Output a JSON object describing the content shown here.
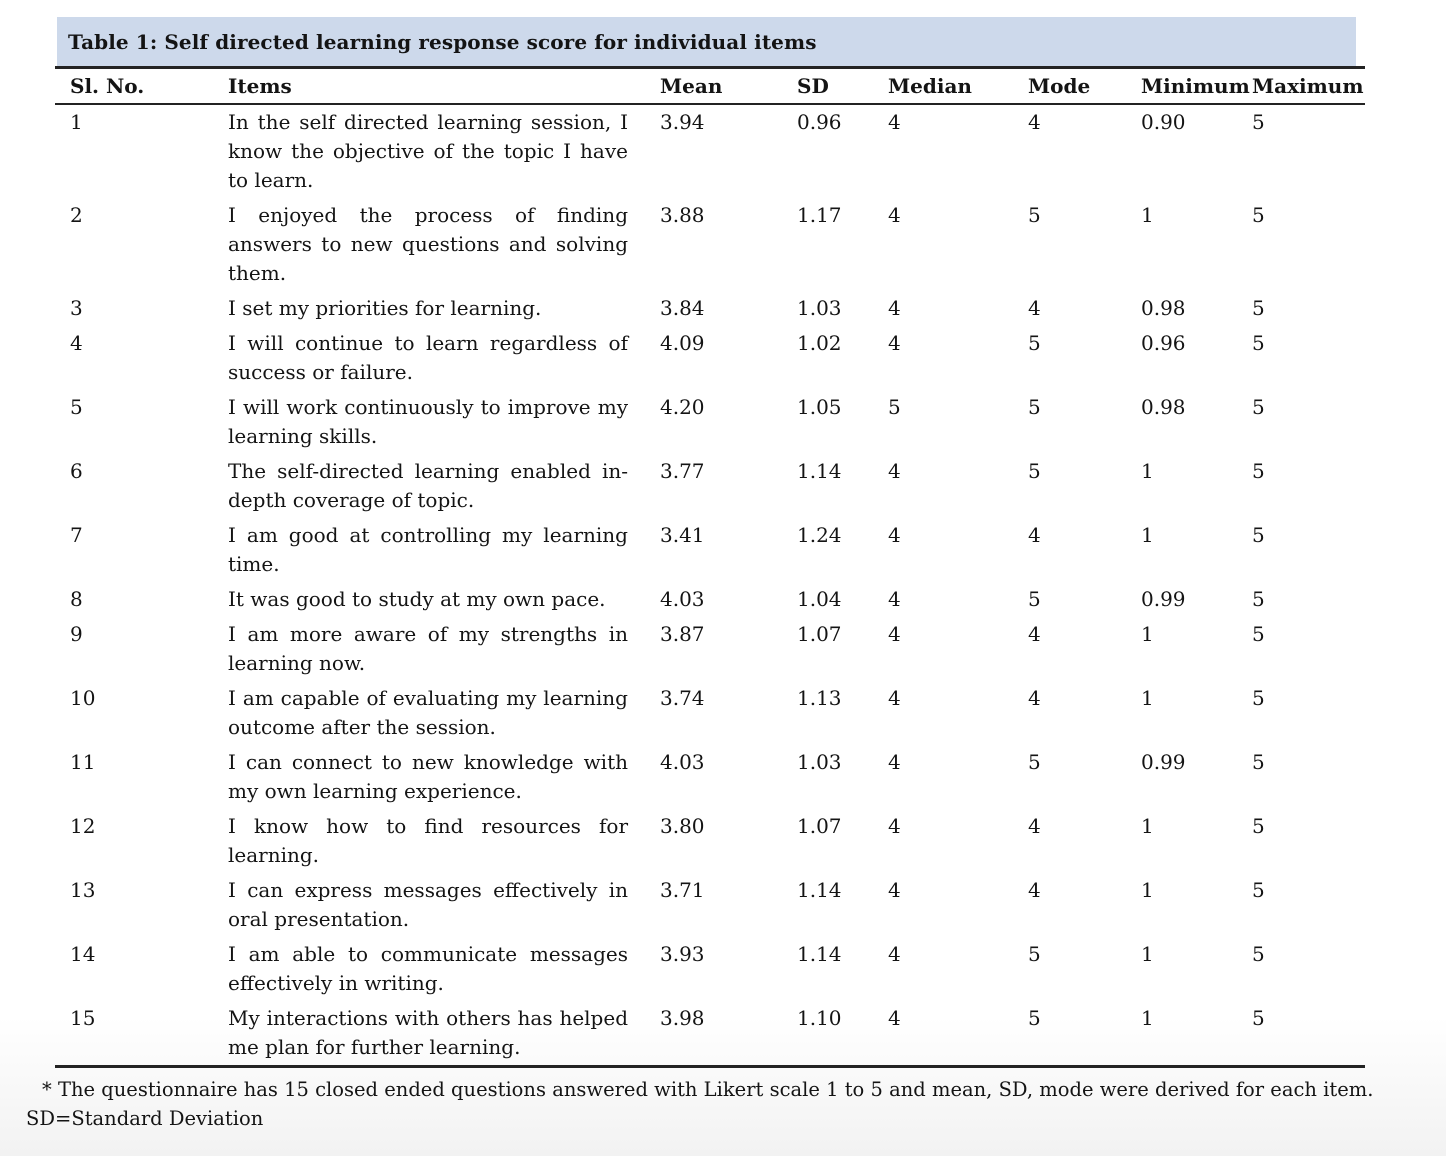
{
  "title": "Table 1: Self directed learning response score for individual items",
  "columns": [
    "Sl. No.",
    "Items",
    "Mean",
    "SD",
    "Median",
    "Mode",
    "Minimum",
    "Maximum"
  ],
  "rows": [
    [
      "1",
      "In the self directed learning session, I know the objective of the topic I have to learn.",
      "3.94",
      "0.96",
      "4",
      "4",
      "0.90",
      "5"
    ],
    [
      "2",
      "I enjoyed the process of finding answers to new questions and solving them.",
      "3.88",
      "1.17",
      "4",
      "5",
      "1",
      "5"
    ],
    [
      "3",
      "I set my priorities for learning.",
      "3.84",
      "1.03",
      "4",
      "4",
      "0.98",
      "5"
    ],
    [
      "4",
      "I will continue to learn regardless of success or failure.",
      "4.09",
      "1.02",
      "4",
      "5",
      "0.96",
      "5"
    ],
    [
      "5",
      "I will work continuously to improve my learning skills.",
      "4.20",
      "1.05",
      "5",
      "5",
      "0.98",
      "5"
    ],
    [
      "6",
      "The self-directed learning enabled in-depth coverage of topic.",
      "3.77",
      "1.14",
      "4",
      "5",
      "1",
      "5"
    ],
    [
      "7",
      "I am good at controlling my learning time.",
      "3.41",
      "1.24",
      "4",
      "4",
      "1",
      "5"
    ],
    [
      "8",
      "It was good to study at my own pace.",
      "4.03",
      "1.04",
      "4",
      "5",
      "0.99",
      "5"
    ],
    [
      "9",
      "I am more aware of my strengths in learning now.",
      "3.87",
      "1.07",
      "4",
      "4",
      "1",
      "5"
    ],
    [
      "10",
      "I am capable of evaluating my learning outcome after the session.",
      "3.74",
      "1.13",
      "4",
      "4",
      "1",
      "5"
    ],
    [
      "11",
      "I can connect to new knowledge with my own learning experience.",
      "4.03",
      "1.03",
      "4",
      "5",
      "0.99",
      "5"
    ],
    [
      "12",
      "I know how to find resources for learning.",
      "3.80",
      "1.07",
      "4",
      "4",
      "1",
      "5"
    ],
    [
      "13",
      "I can express messages effectively in oral presentation.",
      "3.71",
      "1.14",
      "4",
      "4",
      "1",
      "5"
    ],
    [
      "14",
      "I am able to communicate messages effectively in writing.",
      "3.93",
      "1.14",
      "4",
      "5",
      "1",
      "5"
    ],
    [
      "15",
      "My interactions with others has helped me plan for further learning.",
      "3.98",
      "1.10",
      "4",
      "5",
      "1",
      "5"
    ]
  ],
  "footnote": {
    "line1": "* The questionnaire has 15 closed ended questions answered with Likert scale 1 to 5 and mean, SD, mode were derived for each item.",
    "line2": "SD=Standard Deviation"
  },
  "colors": {
    "title_bg": "#cdd9eb",
    "rule": "#232323",
    "text": "#141414"
  }
}
